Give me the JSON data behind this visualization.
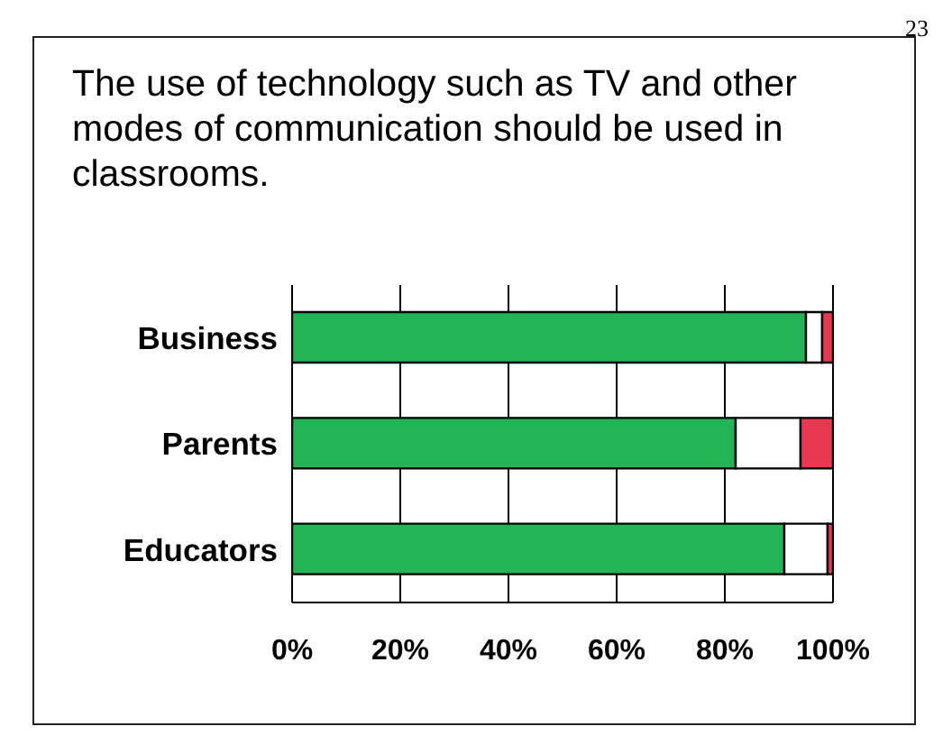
{
  "chart_data": {
    "type": "bar",
    "orientation": "horizontal",
    "stacked": true,
    "title": "The use of technology such as TV and other modes of communication should be used in classrooms.",
    "annotations": [
      "23"
    ],
    "categories": [
      "Business",
      "Parents",
      "Educators"
    ],
    "series": [
      {
        "color": "#22b455",
        "values": [
          95,
          82,
          91
        ]
      },
      {
        "color": "#ffffff",
        "values": [
          3,
          12,
          8
        ]
      },
      {
        "color": "#e8384f",
        "values": [
          2,
          6,
          1
        ]
      }
    ],
    "xlim": [
      0,
      100
    ],
    "xticks": [
      {
        "value": 0,
        "label": "0%"
      },
      {
        "value": 20,
        "label": "20%"
      },
      {
        "value": 40,
        "label": "40%"
      },
      {
        "value": 60,
        "label": "60%"
      },
      {
        "value": 80,
        "label": "80%"
      },
      {
        "value": 100,
        "label": "100%"
      }
    ],
    "grid": "x",
    "legend": false
  }
}
